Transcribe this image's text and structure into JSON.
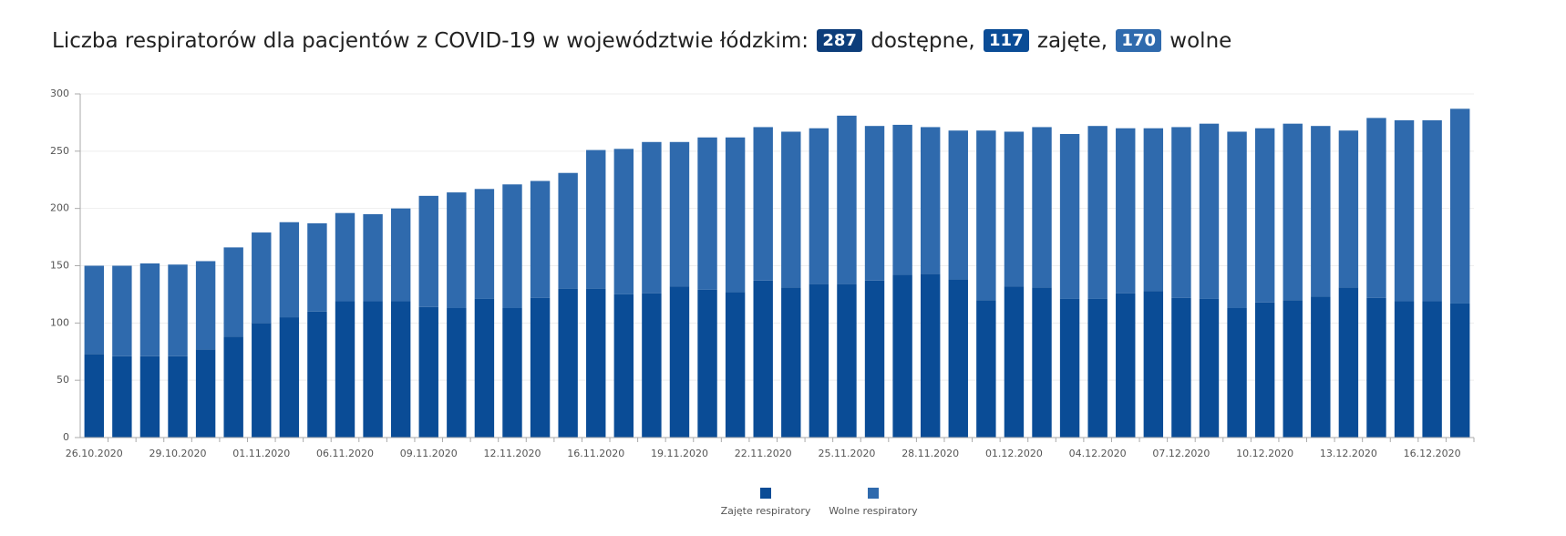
{
  "chart_data": {
    "type": "stacked_bar",
    "title": "Liczba respiratorów dla pacjentów z COVID-19 w województwie łódzkim:",
    "title_badges": [
      {
        "value": "287",
        "text": "dostępne,",
        "color": "#0d3d7a"
      },
      {
        "value": "117",
        "text": "zajęte,",
        "color": "#0a4c96"
      },
      {
        "value": "170",
        "text": "wolne",
        "color": "#2f6aad"
      }
    ],
    "categories": [
      "26.10.2020",
      null,
      null,
      "29.10.2020",
      null,
      null,
      "01.11.2020",
      null,
      null,
      "06.11.2020",
      null,
      null,
      "09.11.2020",
      null,
      null,
      "12.11.2020",
      null,
      null,
      "16.11.2020",
      null,
      null,
      "19.11.2020",
      null,
      null,
      "22.11.2020",
      null,
      null,
      "25.11.2020",
      null,
      null,
      "28.11.2020",
      null,
      null,
      "01.12.2020",
      null,
      null,
      "04.12.2020",
      null,
      null,
      "07.12.2020",
      null,
      null,
      "10.12.2020",
      null,
      null,
      "13.12.2020",
      null,
      null,
      "16.12.2020",
      null
    ],
    "series": [
      {
        "name": "Zajęte respiratory",
        "color": "#0a4c96",
        "values": [
          73,
          71,
          71,
          71,
          77,
          88,
          100,
          105,
          110,
          119,
          119,
          119,
          114,
          113,
          121,
          113,
          122,
          130,
          130,
          125,
          126,
          132,
          129,
          127,
          137,
          131,
          134,
          134,
          137,
          142,
          143,
          138,
          120,
          132,
          131,
          121,
          121,
          126,
          128,
          122,
          121,
          113,
          118,
          120,
          123,
          131,
          122,
          119,
          119,
          117
        ]
      },
      {
        "name": "Wolne respiratory",
        "color": "#2f6aad",
        "values": [
          77,
          79,
          81,
          80,
          77,
          78,
          79,
          83,
          77,
          77,
          76,
          81,
          97,
          101,
          96,
          108,
          102,
          101,
          121,
          127,
          132,
          126,
          133,
          135,
          134,
          136,
          136,
          147,
          135,
          131,
          128,
          130,
          148,
          135,
          140,
          144,
          151,
          144,
          142,
          149,
          153,
          154,
          152,
          154,
          149,
          137,
          157,
          158,
          158,
          170
        ]
      }
    ],
    "ylim": [
      0,
      300
    ],
    "yticks": [
      0,
      50,
      100,
      150,
      200,
      250,
      300
    ],
    "grid": true,
    "legend": "bottom"
  }
}
